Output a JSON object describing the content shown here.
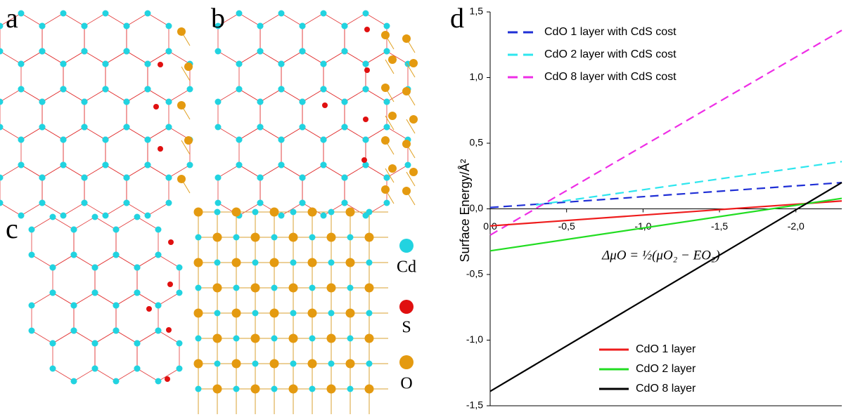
{
  "figure_labels": [
    "a",
    "b",
    "c",
    "d"
  ],
  "atom_legend": [
    "Cd",
    "S",
    "O"
  ],
  "chart_data": {
    "type": "line",
    "y_label": "Surface Energy/Å²",
    "annotation": "ΔμO = ½(μO₂ − EO₂)",
    "xlim": [
      0,
      -2.3
    ],
    "ylim": [
      -1.5,
      1.5
    ],
    "xticks": [
      {
        "value": 0,
        "label": "0,0"
      },
      {
        "value": -0.5,
        "label": "-0,5"
      },
      {
        "value": -1.0,
        "label": "-1,0"
      },
      {
        "value": -1.5,
        "label": "-1,5"
      },
      {
        "value": -2.0,
        "label": "-2,0"
      }
    ],
    "yticks": [
      {
        "value": -1.5,
        "label": "-1,5"
      },
      {
        "value": -1.0,
        "label": "-1,0"
      },
      {
        "value": -0.5,
        "label": "-0,5"
      },
      {
        "value": 0,
        "label": "0,0"
      },
      {
        "value": 0.5,
        "label": "0,5"
      },
      {
        "value": 1.0,
        "label": "1,0"
      },
      {
        "value": 1.5,
        "label": "1,5"
      }
    ],
    "series": [
      {
        "name": "CdO 1 layer with CdS cost",
        "color": "#1f2fd6",
        "linestyle": "dashed",
        "x": [
          0,
          -2.3
        ],
        "values": [
          0.01,
          0.2
        ]
      },
      {
        "name": "CdO 2 layer with CdS cost",
        "color": "#2ee6ee",
        "linestyle": "dashed",
        "x": [
          -0.3,
          -2.3
        ],
        "values": [
          0.03,
          0.36
        ]
      },
      {
        "name": "CdO 8 layer with CdS cost",
        "color": "#ee2ee6",
        "linestyle": "dashed",
        "x": [
          0,
          -2.3
        ],
        "values": [
          -0.2,
          1.36
        ]
      },
      {
        "name": "CdO 1 layer",
        "color": "#ee1c1c",
        "linestyle": "solid",
        "x": [
          0,
          -2.3
        ],
        "values": [
          -0.13,
          0.06
        ]
      },
      {
        "name": "CdO 2 layer",
        "color": "#22dd22",
        "linestyle": "solid",
        "x": [
          0,
          -2.3
        ],
        "values": [
          -0.32,
          0.08
        ]
      },
      {
        "name": "CdO 8 layer",
        "color": "#000000",
        "linestyle": "solid",
        "x": [
          0,
          -2.3
        ],
        "values": [
          -1.39,
          0.2
        ]
      }
    ]
  }
}
